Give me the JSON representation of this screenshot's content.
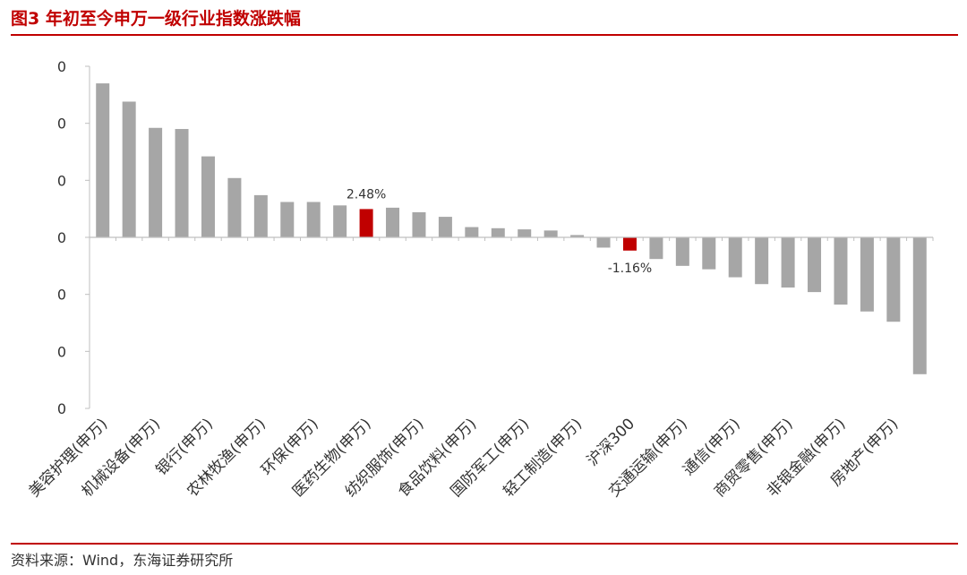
{
  "title": "图3   年初至今申万一级行业指数涨跌幅",
  "source": "资料来源：Wind，东海证券研究所",
  "colors": {
    "bar": "#a6a6a6",
    "highlight": "#c00000",
    "axis": "#bfbfbf"
  },
  "chart_data": {
    "type": "bar",
    "title": "年初至今申万一级行业指数涨跌幅",
    "ylabel": "",
    "xlabel": "",
    "ylim": [
      -15,
      15
    ],
    "y_tick_values": [
      15,
      10,
      5,
      0,
      -5,
      -10,
      -15
    ],
    "y_tick_labels": [
      "0",
      "0",
      "0",
      "0",
      "0",
      "0",
      "0"
    ],
    "categories": [
      "美容护理(申万)",
      "",
      "机械设备(申万)",
      "",
      "银行(申万)",
      "",
      "农林牧渔(申万)",
      "",
      "环保(申万)",
      "",
      "医药生物(申万)",
      "",
      "纺织服饰(申万)",
      "",
      "食品饮料(申万)",
      "",
      "国防军工(申万)",
      "",
      "轻工制造(申万)",
      "",
      "沪深300",
      "",
      "交通运输(申万)",
      "",
      "通信(申万)",
      "",
      "商贸零售(申万)",
      "",
      "非银金融(申万)",
      "",
      "房地产(申万)",
      ""
    ],
    "values": [
      13.5,
      11.9,
      9.6,
      9.5,
      7.1,
      5.2,
      3.7,
      3.1,
      3.1,
      2.8,
      2.48,
      2.6,
      2.2,
      1.8,
      0.9,
      0.8,
      0.7,
      0.6,
      0.2,
      -0.9,
      -1.16,
      -1.9,
      -2.5,
      -2.8,
      -3.5,
      -4.1,
      -4.4,
      -4.8,
      -5.9,
      -6.5,
      -7.4,
      -12.0
    ],
    "highlight_indices": [
      10,
      20
    ],
    "data_labels": [
      {
        "index": 10,
        "text": "2.48%"
      },
      {
        "index": 20,
        "text": "-1.16%"
      }
    ]
  }
}
